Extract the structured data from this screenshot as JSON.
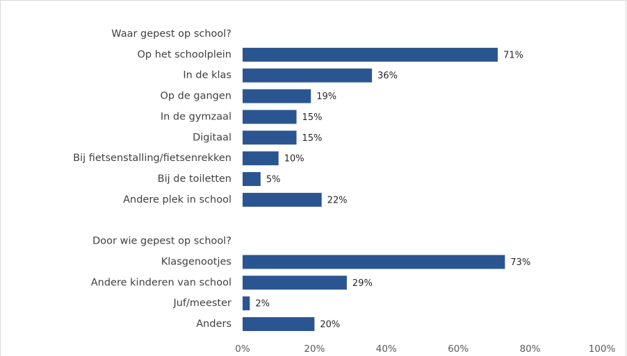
{
  "chart_data": {
    "type": "bar",
    "orientation": "horizontal",
    "color": "#2b5591",
    "groups": [
      {
        "title": "Waar gepest op school?",
        "categories": [
          "Op het schoolplein",
          "In de klas",
          "Op de gangen",
          "In de gymzaal",
          "Digitaal",
          "Bij fietsenstalling/fietsenrekken",
          "Bij de toiletten",
          "Andere plek in school"
        ],
        "values": [
          71,
          36,
          19,
          15,
          15,
          10,
          5,
          22
        ],
        "value_labels": [
          "71%",
          "36%",
          "19%",
          "15%",
          "15%",
          "10%",
          "5%",
          "22%"
        ]
      },
      {
        "title": "Door wie gepest op school?",
        "categories": [
          "Klasgenootjes",
          "Andere kinderen van school",
          "Juf/meester",
          "Anders"
        ],
        "values": [
          73,
          29,
          2,
          20
        ],
        "value_labels": [
          "73%",
          "29%",
          "2%",
          "20%"
        ]
      }
    ],
    "xlim": [
      0,
      100
    ],
    "xticks": [
      {
        "value": 0,
        "label": "0%"
      },
      {
        "value": 20,
        "label": "20%"
      },
      {
        "value": 40,
        "label": "40%"
      },
      {
        "value": 60,
        "label": "60%"
      },
      {
        "value": 80,
        "label": "80%"
      },
      {
        "value": 100,
        "label": "100%"
      }
    ]
  }
}
